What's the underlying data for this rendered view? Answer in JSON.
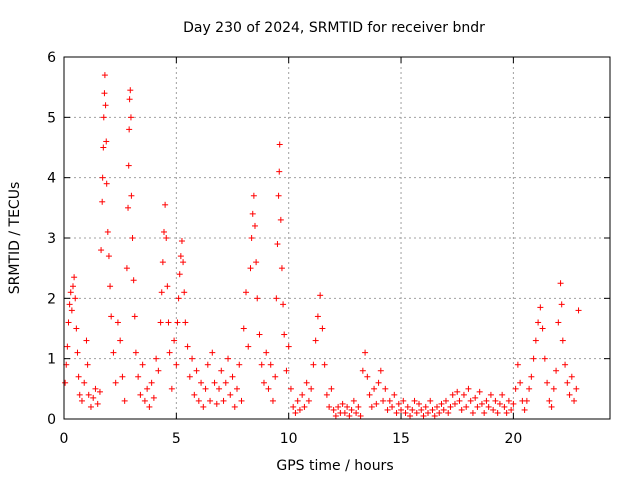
{
  "chart_data": {
    "type": "scatter",
    "title": "Day 230 of 2024, SRMTID for receiver bndr",
    "xlabel": "GPS time / hours",
    "ylabel": "SRMTID / TECUs",
    "xlim": [
      0,
      24.3
    ],
    "ylim": [
      0,
      6
    ],
    "xticks": [
      0,
      5,
      10,
      15,
      20
    ],
    "yticks": [
      0,
      1,
      2,
      3,
      4,
      5,
      6
    ],
    "grid": true,
    "marker": "+",
    "color": "#ff0000",
    "series": [
      {
        "name": "SRMTID",
        "points": [
          [
            0.05,
            0.6
          ],
          [
            0.1,
            0.9
          ],
          [
            0.15,
            1.2
          ],
          [
            0.2,
            1.6
          ],
          [
            0.25,
            1.9
          ],
          [
            0.3,
            2.1
          ],
          [
            0.35,
            1.8
          ],
          [
            0.4,
            2.2
          ],
          [
            0.45,
            2.35
          ],
          [
            0.5,
            2.0
          ],
          [
            0.55,
            1.5
          ],
          [
            0.6,
            1.1
          ],
          [
            0.65,
            0.7
          ],
          [
            0.7,
            0.4
          ],
          [
            0.8,
            0.3
          ],
          [
            0.9,
            0.6
          ],
          [
            1.0,
            1.3
          ],
          [
            1.05,
            0.9
          ],
          [
            1.1,
            0.4
          ],
          [
            1.2,
            0.2
          ],
          [
            1.3,
            0.35
          ],
          [
            1.4,
            0.5
          ],
          [
            1.5,
            0.25
          ],
          [
            1.6,
            0.45
          ],
          [
            1.65,
            2.8
          ],
          [
            1.7,
            3.6
          ],
          [
            1.72,
            4.0
          ],
          [
            1.75,
            4.5
          ],
          [
            1.77,
            5.0
          ],
          [
            1.8,
            5.4
          ],
          [
            1.82,
            5.7
          ],
          [
            1.85,
            5.2
          ],
          [
            1.88,
            4.6
          ],
          [
            1.9,
            3.9
          ],
          [
            1.95,
            3.1
          ],
          [
            2.0,
            2.7
          ],
          [
            2.05,
            2.2
          ],
          [
            2.1,
            1.7
          ],
          [
            2.2,
            1.1
          ],
          [
            2.3,
            0.6
          ],
          [
            2.4,
            1.6
          ],
          [
            2.5,
            1.3
          ],
          [
            2.6,
            0.7
          ],
          [
            2.7,
            0.3
          ],
          [
            2.8,
            2.5
          ],
          [
            2.85,
            3.5
          ],
          [
            2.88,
            4.2
          ],
          [
            2.9,
            4.8
          ],
          [
            2.92,
            5.3
          ],
          [
            2.95,
            5.45
          ],
          [
            2.98,
            5.0
          ],
          [
            3.0,
            3.7
          ],
          [
            3.05,
            3.0
          ],
          [
            3.1,
            2.3
          ],
          [
            3.15,
            1.7
          ],
          [
            3.2,
            1.1
          ],
          [
            3.3,
            0.7
          ],
          [
            3.4,
            0.4
          ],
          [
            3.5,
            0.9
          ],
          [
            3.6,
            0.3
          ],
          [
            3.7,
            0.5
          ],
          [
            3.8,
            0.2
          ],
          [
            3.9,
            0.6
          ],
          [
            4.0,
            0.35
          ],
          [
            4.1,
            1.0
          ],
          [
            4.2,
            0.8
          ],
          [
            4.3,
            1.6
          ],
          [
            4.35,
            2.1
          ],
          [
            4.4,
            2.6
          ],
          [
            4.45,
            3.1
          ],
          [
            4.5,
            3.55
          ],
          [
            4.55,
            3.0
          ],
          [
            4.6,
            2.2
          ],
          [
            4.65,
            1.6
          ],
          [
            4.7,
            1.1
          ],
          [
            4.8,
            0.5
          ],
          [
            4.9,
            1.3
          ],
          [
            5.0,
            0.9
          ],
          [
            5.05,
            1.6
          ],
          [
            5.1,
            2.0
          ],
          [
            5.15,
            2.4
          ],
          [
            5.2,
            2.7
          ],
          [
            5.25,
            2.95
          ],
          [
            5.3,
            2.6
          ],
          [
            5.35,
            2.1
          ],
          [
            5.4,
            1.6
          ],
          [
            5.5,
            1.2
          ],
          [
            5.6,
            0.7
          ],
          [
            5.7,
            1.0
          ],
          [
            5.8,
            0.4
          ],
          [
            5.9,
            0.8
          ],
          [
            6.0,
            0.3
          ],
          [
            6.1,
            0.6
          ],
          [
            6.2,
            0.2
          ],
          [
            6.3,
            0.5
          ],
          [
            6.4,
            0.9
          ],
          [
            6.5,
            0.3
          ],
          [
            6.6,
            1.1
          ],
          [
            6.7,
            0.6
          ],
          [
            6.8,
            0.25
          ],
          [
            6.9,
            0.5
          ],
          [
            7.0,
            0.8
          ],
          [
            7.1,
            0.3
          ],
          [
            7.2,
            0.6
          ],
          [
            7.3,
            1.0
          ],
          [
            7.4,
            0.4
          ],
          [
            7.5,
            0.7
          ],
          [
            7.6,
            0.2
          ],
          [
            7.7,
            0.5
          ],
          [
            7.8,
            0.9
          ],
          [
            7.9,
            0.3
          ],
          [
            8.0,
            1.5
          ],
          [
            8.1,
            2.1
          ],
          [
            8.2,
            1.2
          ],
          [
            8.3,
            2.5
          ],
          [
            8.35,
            3.0
          ],
          [
            8.4,
            3.4
          ],
          [
            8.45,
            3.7
          ],
          [
            8.5,
            3.2
          ],
          [
            8.55,
            2.6
          ],
          [
            8.6,
            2.0
          ],
          [
            8.7,
            1.4
          ],
          [
            8.8,
            0.9
          ],
          [
            8.9,
            0.6
          ],
          [
            9.0,
            1.1
          ],
          [
            9.1,
            0.5
          ],
          [
            9.2,
            0.9
          ],
          [
            9.3,
            0.3
          ],
          [
            9.4,
            0.7
          ],
          [
            9.45,
            2.0
          ],
          [
            9.5,
            2.9
          ],
          [
            9.55,
            3.7
          ],
          [
            9.58,
            4.1
          ],
          [
            9.6,
            4.55
          ],
          [
            9.65,
            3.3
          ],
          [
            9.7,
            2.5
          ],
          [
            9.75,
            1.9
          ],
          [
            9.8,
            1.4
          ],
          [
            9.9,
            0.8
          ],
          [
            10.0,
            1.2
          ],
          [
            10.1,
            0.5
          ],
          [
            10.2,
            0.2
          ],
          [
            10.3,
            0.1
          ],
          [
            10.4,
            0.3
          ],
          [
            10.5,
            0.15
          ],
          [
            10.6,
            0.4
          ],
          [
            10.7,
            0.2
          ],
          [
            10.8,
            0.6
          ],
          [
            10.9,
            0.3
          ],
          [
            11.0,
            0.5
          ],
          [
            11.1,
            0.9
          ],
          [
            11.2,
            1.3
          ],
          [
            11.3,
            1.7
          ],
          [
            11.4,
            2.05
          ],
          [
            11.5,
            1.5
          ],
          [
            11.6,
            0.9
          ],
          [
            11.7,
            0.4
          ],
          [
            11.8,
            0.2
          ],
          [
            11.9,
            0.5
          ],
          [
            12.0,
            0.15
          ],
          [
            12.1,
            0.05
          ],
          [
            12.2,
            0.2
          ],
          [
            12.3,
            0.1
          ],
          [
            12.4,
            0.25
          ],
          [
            12.5,
            0.1
          ],
          [
            12.6,
            0.2
          ],
          [
            12.7,
            0.05
          ],
          [
            12.8,
            0.15
          ],
          [
            12.9,
            0.3
          ],
          [
            13.0,
            0.1
          ],
          [
            13.1,
            0.2
          ],
          [
            13.2,
            0.05
          ],
          [
            13.3,
            0.8
          ],
          [
            13.4,
            1.1
          ],
          [
            13.5,
            0.7
          ],
          [
            13.6,
            0.4
          ],
          [
            13.7,
            0.2
          ],
          [
            13.8,
            0.5
          ],
          [
            13.9,
            0.25
          ],
          [
            14.0,
            0.6
          ],
          [
            14.1,
            0.8
          ],
          [
            14.2,
            0.3
          ],
          [
            14.3,
            0.5
          ],
          [
            14.4,
            0.15
          ],
          [
            14.5,
            0.3
          ],
          [
            14.6,
            0.2
          ],
          [
            14.7,
            0.4
          ],
          [
            14.8,
            0.1
          ],
          [
            14.9,
            0.25
          ],
          [
            15.0,
            0.15
          ],
          [
            15.1,
            0.3
          ],
          [
            15.2,
            0.1
          ],
          [
            15.3,
            0.2
          ],
          [
            15.4,
            0.05
          ],
          [
            15.5,
            0.15
          ],
          [
            15.6,
            0.3
          ],
          [
            15.7,
            0.1
          ],
          [
            15.8,
            0.25
          ],
          [
            15.9,
            0.15
          ],
          [
            16.0,
            0.05
          ],
          [
            16.1,
            0.2
          ],
          [
            16.2,
            0.1
          ],
          [
            16.3,
            0.3
          ],
          [
            16.4,
            0.15
          ],
          [
            16.5,
            0.05
          ],
          [
            16.6,
            0.2
          ],
          [
            16.7,
            0.1
          ],
          [
            16.8,
            0.25
          ],
          [
            16.9,
            0.15
          ],
          [
            17.0,
            0.3
          ],
          [
            17.1,
            0.1
          ],
          [
            17.2,
            0.2
          ],
          [
            17.3,
            0.4
          ],
          [
            17.4,
            0.25
          ],
          [
            17.5,
            0.45
          ],
          [
            17.6,
            0.3
          ],
          [
            17.7,
            0.15
          ],
          [
            17.8,
            0.4
          ],
          [
            17.9,
            0.2
          ],
          [
            18.0,
            0.5
          ],
          [
            18.1,
            0.3
          ],
          [
            18.2,
            0.1
          ],
          [
            18.3,
            0.35
          ],
          [
            18.4,
            0.2
          ],
          [
            18.5,
            0.45
          ],
          [
            18.6,
            0.25
          ],
          [
            18.7,
            0.1
          ],
          [
            18.8,
            0.3
          ],
          [
            18.9,
            0.2
          ],
          [
            19.0,
            0.4
          ],
          [
            19.1,
            0.15
          ],
          [
            19.2,
            0.3
          ],
          [
            19.3,
            0.1
          ],
          [
            19.4,
            0.25
          ],
          [
            19.5,
            0.4
          ],
          [
            19.6,
            0.2
          ],
          [
            19.7,
            0.1
          ],
          [
            19.8,
            0.3
          ],
          [
            19.9,
            0.15
          ],
          [
            20.0,
            0.25
          ],
          [
            20.1,
            0.5
          ],
          [
            20.2,
            0.9
          ],
          [
            20.3,
            0.6
          ],
          [
            20.4,
            0.3
          ],
          [
            20.5,
            0.15
          ],
          [
            20.6,
            0.3
          ],
          [
            20.7,
            0.5
          ],
          [
            20.8,
            0.7
          ],
          [
            20.9,
            1.0
          ],
          [
            21.0,
            1.3
          ],
          [
            21.1,
            1.6
          ],
          [
            21.2,
            1.85
          ],
          [
            21.3,
            1.5
          ],
          [
            21.4,
            1.0
          ],
          [
            21.5,
            0.6
          ],
          [
            21.6,
            0.3
          ],
          [
            21.7,
            0.2
          ],
          [
            21.8,
            0.5
          ],
          [
            21.9,
            0.8
          ],
          [
            22.0,
            1.6
          ],
          [
            22.1,
            2.25
          ],
          [
            22.15,
            1.9
          ],
          [
            22.2,
            1.3
          ],
          [
            22.3,
            0.9
          ],
          [
            22.4,
            0.6
          ],
          [
            22.5,
            0.4
          ],
          [
            22.6,
            0.7
          ],
          [
            22.7,
            0.3
          ],
          [
            22.8,
            0.5
          ],
          [
            22.9,
            1.8
          ]
        ]
      }
    ]
  }
}
